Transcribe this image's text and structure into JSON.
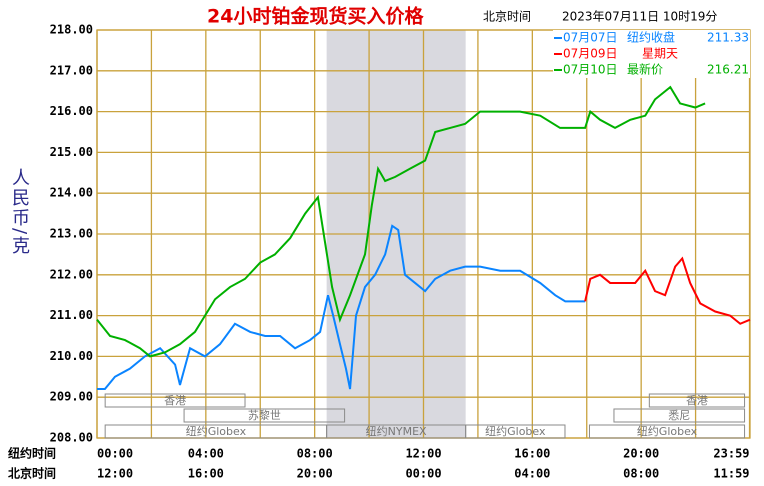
{
  "chart_data": {
    "type": "line",
    "title": "24小时铂金现货买入价格",
    "time_zone": "北京时间",
    "timestamp": "2023年07月11日 10时19分",
    "y_label": "人民币/克",
    "x_label": "纽约时间",
    "x2_label": "北京时间",
    "xlim": [
      0,
      24
    ],
    "ylim": [
      208,
      218
    ],
    "yticks": [
      {
        "value": 208,
        "label": "208.00"
      },
      {
        "value": 209,
        "label": "209.00"
      },
      {
        "value": 210,
        "label": "210.00"
      },
      {
        "value": 211,
        "label": "211.00"
      },
      {
        "value": 212,
        "label": "212.00"
      },
      {
        "value": 213,
        "label": "213.00"
      },
      {
        "value": 214,
        "label": "214.00"
      },
      {
        "value": 215,
        "label": "215.00"
      },
      {
        "value": 216,
        "label": "216.00"
      },
      {
        "value": 217,
        "label": "217.00"
      },
      {
        "value": 218,
        "label": "218.00"
      }
    ],
    "xticks": [
      {
        "value": 0,
        "label": "00:00"
      },
      {
        "value": 4,
        "label": "04:00"
      },
      {
        "value": 8,
        "label": "08:00"
      },
      {
        "value": 12,
        "label": "12:00"
      },
      {
        "value": 16,
        "label": "16:00"
      },
      {
        "value": 20,
        "label": "20:00"
      },
      {
        "value": 23.983,
        "label": "23:59"
      }
    ],
    "x2ticks": [
      {
        "value": 0,
        "label": "12:00"
      },
      {
        "value": 4,
        "label": "16:00"
      },
      {
        "value": 8,
        "label": "20:00"
      },
      {
        "value": 12,
        "label": "00:00"
      },
      {
        "value": 16,
        "label": "04:00"
      },
      {
        "value": 20,
        "label": "08:00"
      },
      {
        "value": 23.983,
        "label": "11:59"
      }
    ],
    "xgrid": [
      2,
      6,
      10,
      14,
      18,
      22
    ],
    "grid": true,
    "shade": [
      8.44,
      13.55
    ],
    "session_rows": [
      [
        {
          "name": "香港",
          "start": 0.3,
          "end": 5.44
        },
        {
          "name": "香港",
          "start": 20.3,
          "end": 23.8
        }
      ],
      [
        {
          "name": "苏黎世",
          "start": 3.2,
          "end": 9.1
        },
        {
          "name": "悉尼",
          "start": 19.0,
          "end": 23.8
        }
      ],
      [
        {
          "name": "纽约Globex",
          "start": 0.3,
          "end": 8.44
        },
        {
          "name": "纽约NYMEX",
          "start": 8.44,
          "end": 13.55
        },
        {
          "name": "纽约Globex",
          "start": 13.55,
          "end": 17.2
        },
        {
          "name": "纽约Globex",
          "start": 18.1,
          "end": 23.8
        }
      ]
    ],
    "series": [
      {
        "name": "07月07日",
        "note": "纽约收盘",
        "last": 211.33,
        "color": "#0a84ff",
        "x": [
          0,
          0.29,
          0.66,
          1.21,
          1.76,
          2.32,
          2.87,
          3.05,
          3.42,
          3.97,
          4.52,
          5.07,
          5.63,
          6.18,
          6.73,
          7.28,
          7.83,
          8.2,
          8.49,
          8.68,
          8.93,
          9.15,
          9.3,
          9.52,
          9.85,
          10.22,
          10.59,
          10.85,
          11.07,
          11.32,
          11.69,
          12.06,
          12.43,
          12.98,
          13.53,
          14.08,
          14.82,
          15.55,
          16.29,
          16.84,
          17.21,
          17.94
        ],
        "values": [
          209.2,
          209.2,
          209.5,
          209.7,
          210.0,
          210.2,
          209.8,
          209.3,
          210.2,
          210.0,
          210.3,
          210.8,
          210.6,
          210.5,
          210.5,
          210.2,
          210.4,
          210.6,
          211.5,
          211.0,
          210.3,
          209.7,
          209.2,
          211.0,
          211.7,
          212.0,
          212.5,
          213.2,
          213.1,
          212.0,
          211.8,
          211.6,
          211.9,
          212.1,
          212.2,
          212.2,
          212.1,
          212.1,
          211.8,
          211.5,
          211.35,
          211.35
        ]
      },
      {
        "name": "07月09日",
        "note": "星期天",
        "color": "#ff0000",
        "x": [
          17.94,
          18.13,
          18.49,
          18.86,
          19.23,
          19.78,
          20.15,
          20.51,
          20.88,
          21.25,
          21.51,
          21.8,
          22.17,
          22.72,
          23.27,
          23.64,
          24.0
        ],
        "values": [
          211.35,
          211.9,
          212.0,
          211.8,
          211.8,
          211.8,
          212.1,
          211.6,
          211.5,
          212.2,
          212.4,
          211.8,
          211.3,
          211.1,
          211.0,
          210.8,
          210.9
        ]
      },
      {
        "name": "07月10日",
        "note": "最新价",
        "last": 216.21,
        "color": "#00b000",
        "x": [
          0,
          0.48,
          1.03,
          1.58,
          1.95,
          2.5,
          3.05,
          3.6,
          3.97,
          4.34,
          4.89,
          5.44,
          6.0,
          6.54,
          7.1,
          7.65,
          8.12,
          8.38,
          8.64,
          8.93,
          9.3,
          9.85,
          10.1,
          10.33,
          10.59,
          10.96,
          11.5,
          12.06,
          12.43,
          12.98,
          13.53,
          14.08,
          14.82,
          15.55,
          16.29,
          17.02,
          17.94,
          18.13,
          18.49,
          19.04,
          19.6,
          20.15,
          20.51,
          21.07,
          21.43,
          21.99,
          22.35
        ],
        "values": [
          210.9,
          210.5,
          210.4,
          210.2,
          210.0,
          210.1,
          210.3,
          210.6,
          211.0,
          211.4,
          211.7,
          211.9,
          212.3,
          212.5,
          212.9,
          213.5,
          213.9,
          212.8,
          211.7,
          210.9,
          211.5,
          212.5,
          213.7,
          214.6,
          214.3,
          214.4,
          214.6,
          214.8,
          215.5,
          215.6,
          215.7,
          216.0,
          216.0,
          216.0,
          215.9,
          215.6,
          215.6,
          216.0,
          215.8,
          215.6,
          215.8,
          215.9,
          216.3,
          216.6,
          216.2,
          216.1,
          216.2
        ]
      }
    ]
  }
}
